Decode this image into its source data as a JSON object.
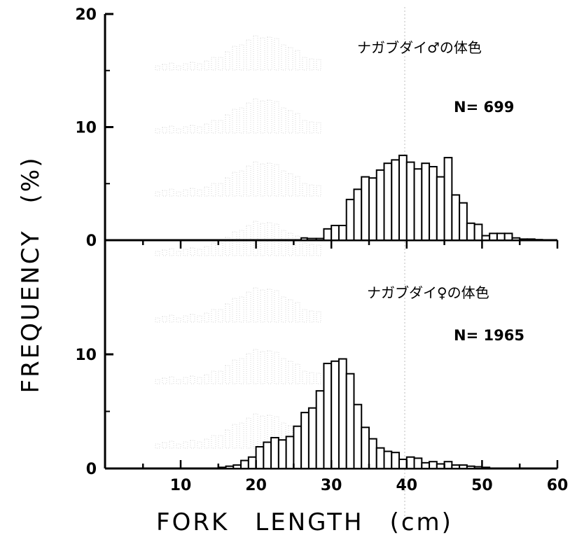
{
  "chart_data": {
    "type": "bar",
    "ylabel": "FREQUENCY　(%)",
    "xlabel": "FORK　LENGTH　(cm)",
    "x_ticks": [
      "10",
      "20",
      "30",
      "40",
      "50",
      "60"
    ],
    "y_ticks_top": [
      "0",
      "10",
      "20"
    ],
    "y_ticks_bottom": [
      "0",
      "10"
    ],
    "xlim": [
      0,
      60
    ],
    "panels": [
      {
        "id": "male",
        "annotation": "ナガブダイ♂の体色",
        "n_label": "N= 699",
        "ylim": [
          0,
          20
        ],
        "bins_start": [
          26,
          26.8,
          28,
          29,
          30,
          31,
          32,
          33,
          34,
          35,
          36,
          37,
          38,
          39,
          40,
          41,
          42,
          43,
          44,
          45,
          46,
          47,
          48,
          49,
          50,
          51,
          52,
          53,
          54,
          55,
          56,
          57
        ],
        "values": [
          0.2,
          0.15,
          0.15,
          1.0,
          1.3,
          1.3,
          3.6,
          4.5,
          5.6,
          5.5,
          6.2,
          6.8,
          7.1,
          7.5,
          6.9,
          6.3,
          6.8,
          6.5,
          5.6,
          7.3,
          4.0,
          3.3,
          1.5,
          1.4,
          0.4,
          0.6,
          0.6,
          0.6,
          0.2,
          0.1,
          0.1,
          0.05
        ]
      },
      {
        "id": "female",
        "annotation": "ナガブダイ♀の体色",
        "n_label": "N= 1965",
        "ylim": [
          0,
          13
        ],
        "bins_start": [
          15,
          16,
          17,
          18,
          19,
          20,
          21,
          22,
          23,
          24,
          25,
          26,
          27,
          28,
          29,
          30,
          31,
          32,
          33,
          34,
          35,
          36,
          37,
          38,
          39,
          40,
          41,
          42,
          43,
          44,
          45,
          46,
          47,
          48,
          49,
          50
        ],
        "values": [
          0.1,
          0.2,
          0.3,
          0.7,
          1.0,
          1.9,
          2.3,
          2.7,
          2.5,
          2.8,
          3.7,
          4.9,
          5.3,
          6.8,
          9.2,
          9.4,
          9.6,
          8.3,
          5.6,
          3.6,
          2.6,
          1.8,
          1.5,
          1.4,
          0.8,
          1.0,
          0.9,
          0.5,
          0.6,
          0.4,
          0.6,
          0.3,
          0.3,
          0.2,
          0.15,
          0.1
        ]
      }
    ]
  }
}
